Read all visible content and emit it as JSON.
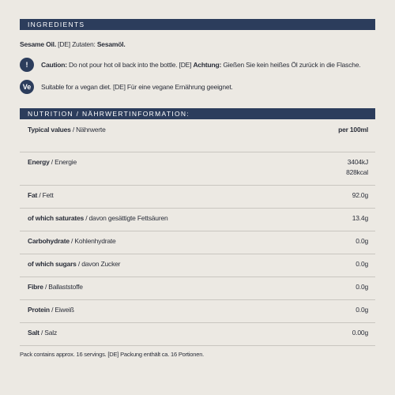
{
  "ingredients": {
    "heading": "INGREDIENTS",
    "name_en": "Sesame Oil.",
    "prefix_de": "[DE] Zutaten:",
    "name_de": "Sesamöl."
  },
  "caution": {
    "icon": "!",
    "label": "Caution:",
    "text": "Do not pour hot oil back into the bottle. [DE]",
    "label_de": "Achtung:",
    "text_de": "Gießen Sie kein heißes Öl zurück in die Flasche."
  },
  "vegan": {
    "icon": "Ve",
    "text": "Suitable for a vegan diet. [DE] Für eine vegane Ernährung geeignet."
  },
  "nutrition": {
    "heading": "NUTRITION / NÄHRWERTINFORMATION:",
    "header": {
      "en": "Typical values",
      "de": "/ Nährwerte",
      "value": "per 100ml"
    },
    "rows": [
      {
        "en": "Energy",
        "de": "/ Energie",
        "values": [
          "3404kJ",
          "828kcal"
        ]
      },
      {
        "en": "Fat",
        "de": "/ Fett",
        "values": [
          "92.0g"
        ]
      },
      {
        "en": "of which saturates",
        "de": "/ davon gesättigte Fettsäuren",
        "values": [
          "13.4g"
        ]
      },
      {
        "en": "Carbohydrate",
        "de": "/ Kohlenhydrate",
        "values": [
          "0.0g"
        ]
      },
      {
        "en": "of which sugars",
        "de": "/ davon Zucker",
        "values": [
          "0.0g"
        ]
      },
      {
        "en": "Fibre",
        "de": "/ Ballaststoffe",
        "values": [
          "0.0g"
        ]
      },
      {
        "en": "Protein",
        "de": "/ Eiweiß",
        "values": [
          "0.0g"
        ]
      },
      {
        "en": "Salt",
        "de": "/ Salz",
        "values": [
          "0.00g"
        ]
      }
    ]
  },
  "footer": "Pack contains approx. 16 servings. [DE] Packung enthält ca. 16 Portionen."
}
